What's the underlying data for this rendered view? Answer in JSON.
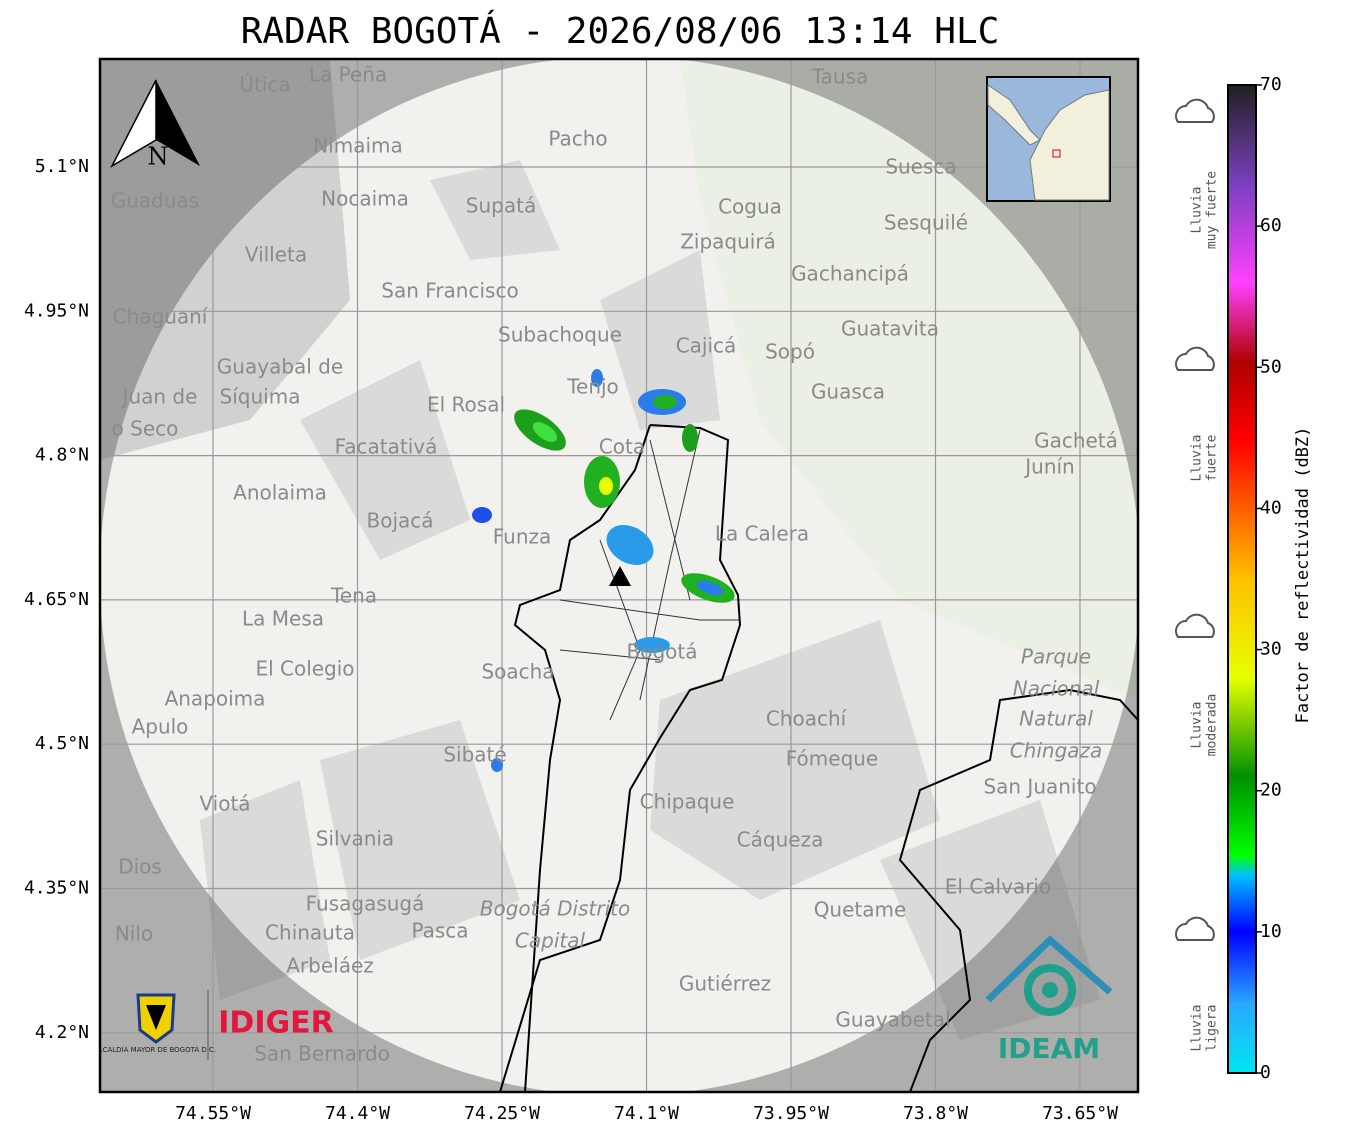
{
  "title": "RADAR BOGOTÁ - 2026/08/06 13:14 HLC",
  "lat_ticks": [
    "5.1°N",
    "4.95°N",
    "4.8°N",
    "4.65°N",
    "4.5°N",
    "4.35°N",
    "4.2°N"
  ],
  "lon_ticks": [
    "74.55°W",
    "74.4°W",
    "74.25°W",
    "74.1°W",
    "73.95°W",
    "73.8°W",
    "73.65°W"
  ],
  "north": "N",
  "places": [
    "La Peña",
    "Útica",
    "Tausa",
    "Pacho",
    "Nimaima",
    "Suesca",
    "Guaduas",
    "Nocaima",
    "Supatá",
    "Cogua",
    "Sesquilé",
    "Zipaquirá",
    "Villeta",
    "Gachancipá",
    "San Francisco",
    "Chaguaní",
    "Guatavita",
    "Subachoque",
    "Cajicá",
    "Sopó",
    "Guayabal de",
    "Síquima",
    "Tenjo",
    "Guasca",
    "El Rosal",
    "Juan de",
    "o Seco",
    "Facatativá",
    "Cota",
    "Gachetá",
    "Junín",
    "Anolaima",
    "Bojacá",
    "Funza",
    "La Calera",
    "Tena",
    "La Mesa",
    "Bogotá",
    "Parque",
    "Nacional",
    "Natural",
    "Chingaza",
    "Soacha",
    "El Colegio",
    "Anapoima",
    "Apulo",
    "Choachí",
    "Fómeque",
    "Sibaté",
    "San Juanito",
    "Viotá",
    "Chipaque",
    "Silvania",
    "Cáqueza",
    "Dios",
    "El Calvario",
    "Fusagasugá",
    "Quetame",
    "Nilo",
    "Chinauta",
    "Pasca",
    "Bogotá Distrito",
    "Capital",
    "Arbeláez",
    "Gutiérrez",
    "Guayabetal",
    "San Bernardo"
  ],
  "logos": {
    "alcaldia": "ALCALDÍA MAYOR DE BOGOTÁ D.C.",
    "idiger": "IDIGER",
    "ideam": "IDEAM"
  },
  "colorbar": {
    "label": "Factor de reflectividad (dBZ)",
    "ticks": [
      0,
      10,
      20,
      30,
      40,
      50,
      60,
      70
    ],
    "legend": [
      [
        "Lluvia",
        "muy fuerte"
      ],
      [
        "Lluvia",
        "fuerte"
      ],
      [
        "Lluvia",
        "moderada"
      ],
      [
        "Lluvia",
        "ligera"
      ]
    ]
  }
}
